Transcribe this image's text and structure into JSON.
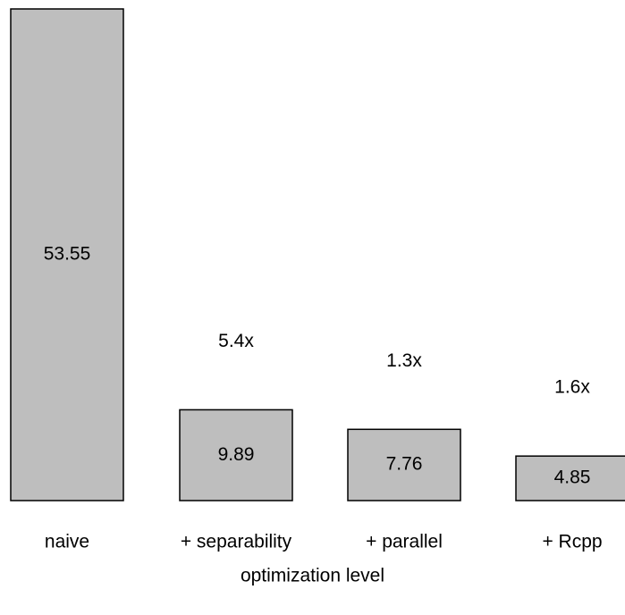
{
  "chart_data": {
    "type": "bar",
    "categories": [
      "naive",
      "+ separability",
      "+ parallel",
      "+ Rcpp"
    ],
    "values": [
      53.55,
      9.89,
      7.76,
      4.85
    ],
    "value_labels": [
      "53.55",
      "9.89",
      "7.76",
      "4.85"
    ],
    "speedups": [
      "",
      "5.4x",
      "1.3x",
      "1.6x"
    ],
    "xlabel": "optimization level",
    "ylabel": "",
    "title": "",
    "ylim": [
      0,
      53.55
    ],
    "grid": false,
    "bar_color": "#bebebe",
    "border_color": "#000000"
  }
}
